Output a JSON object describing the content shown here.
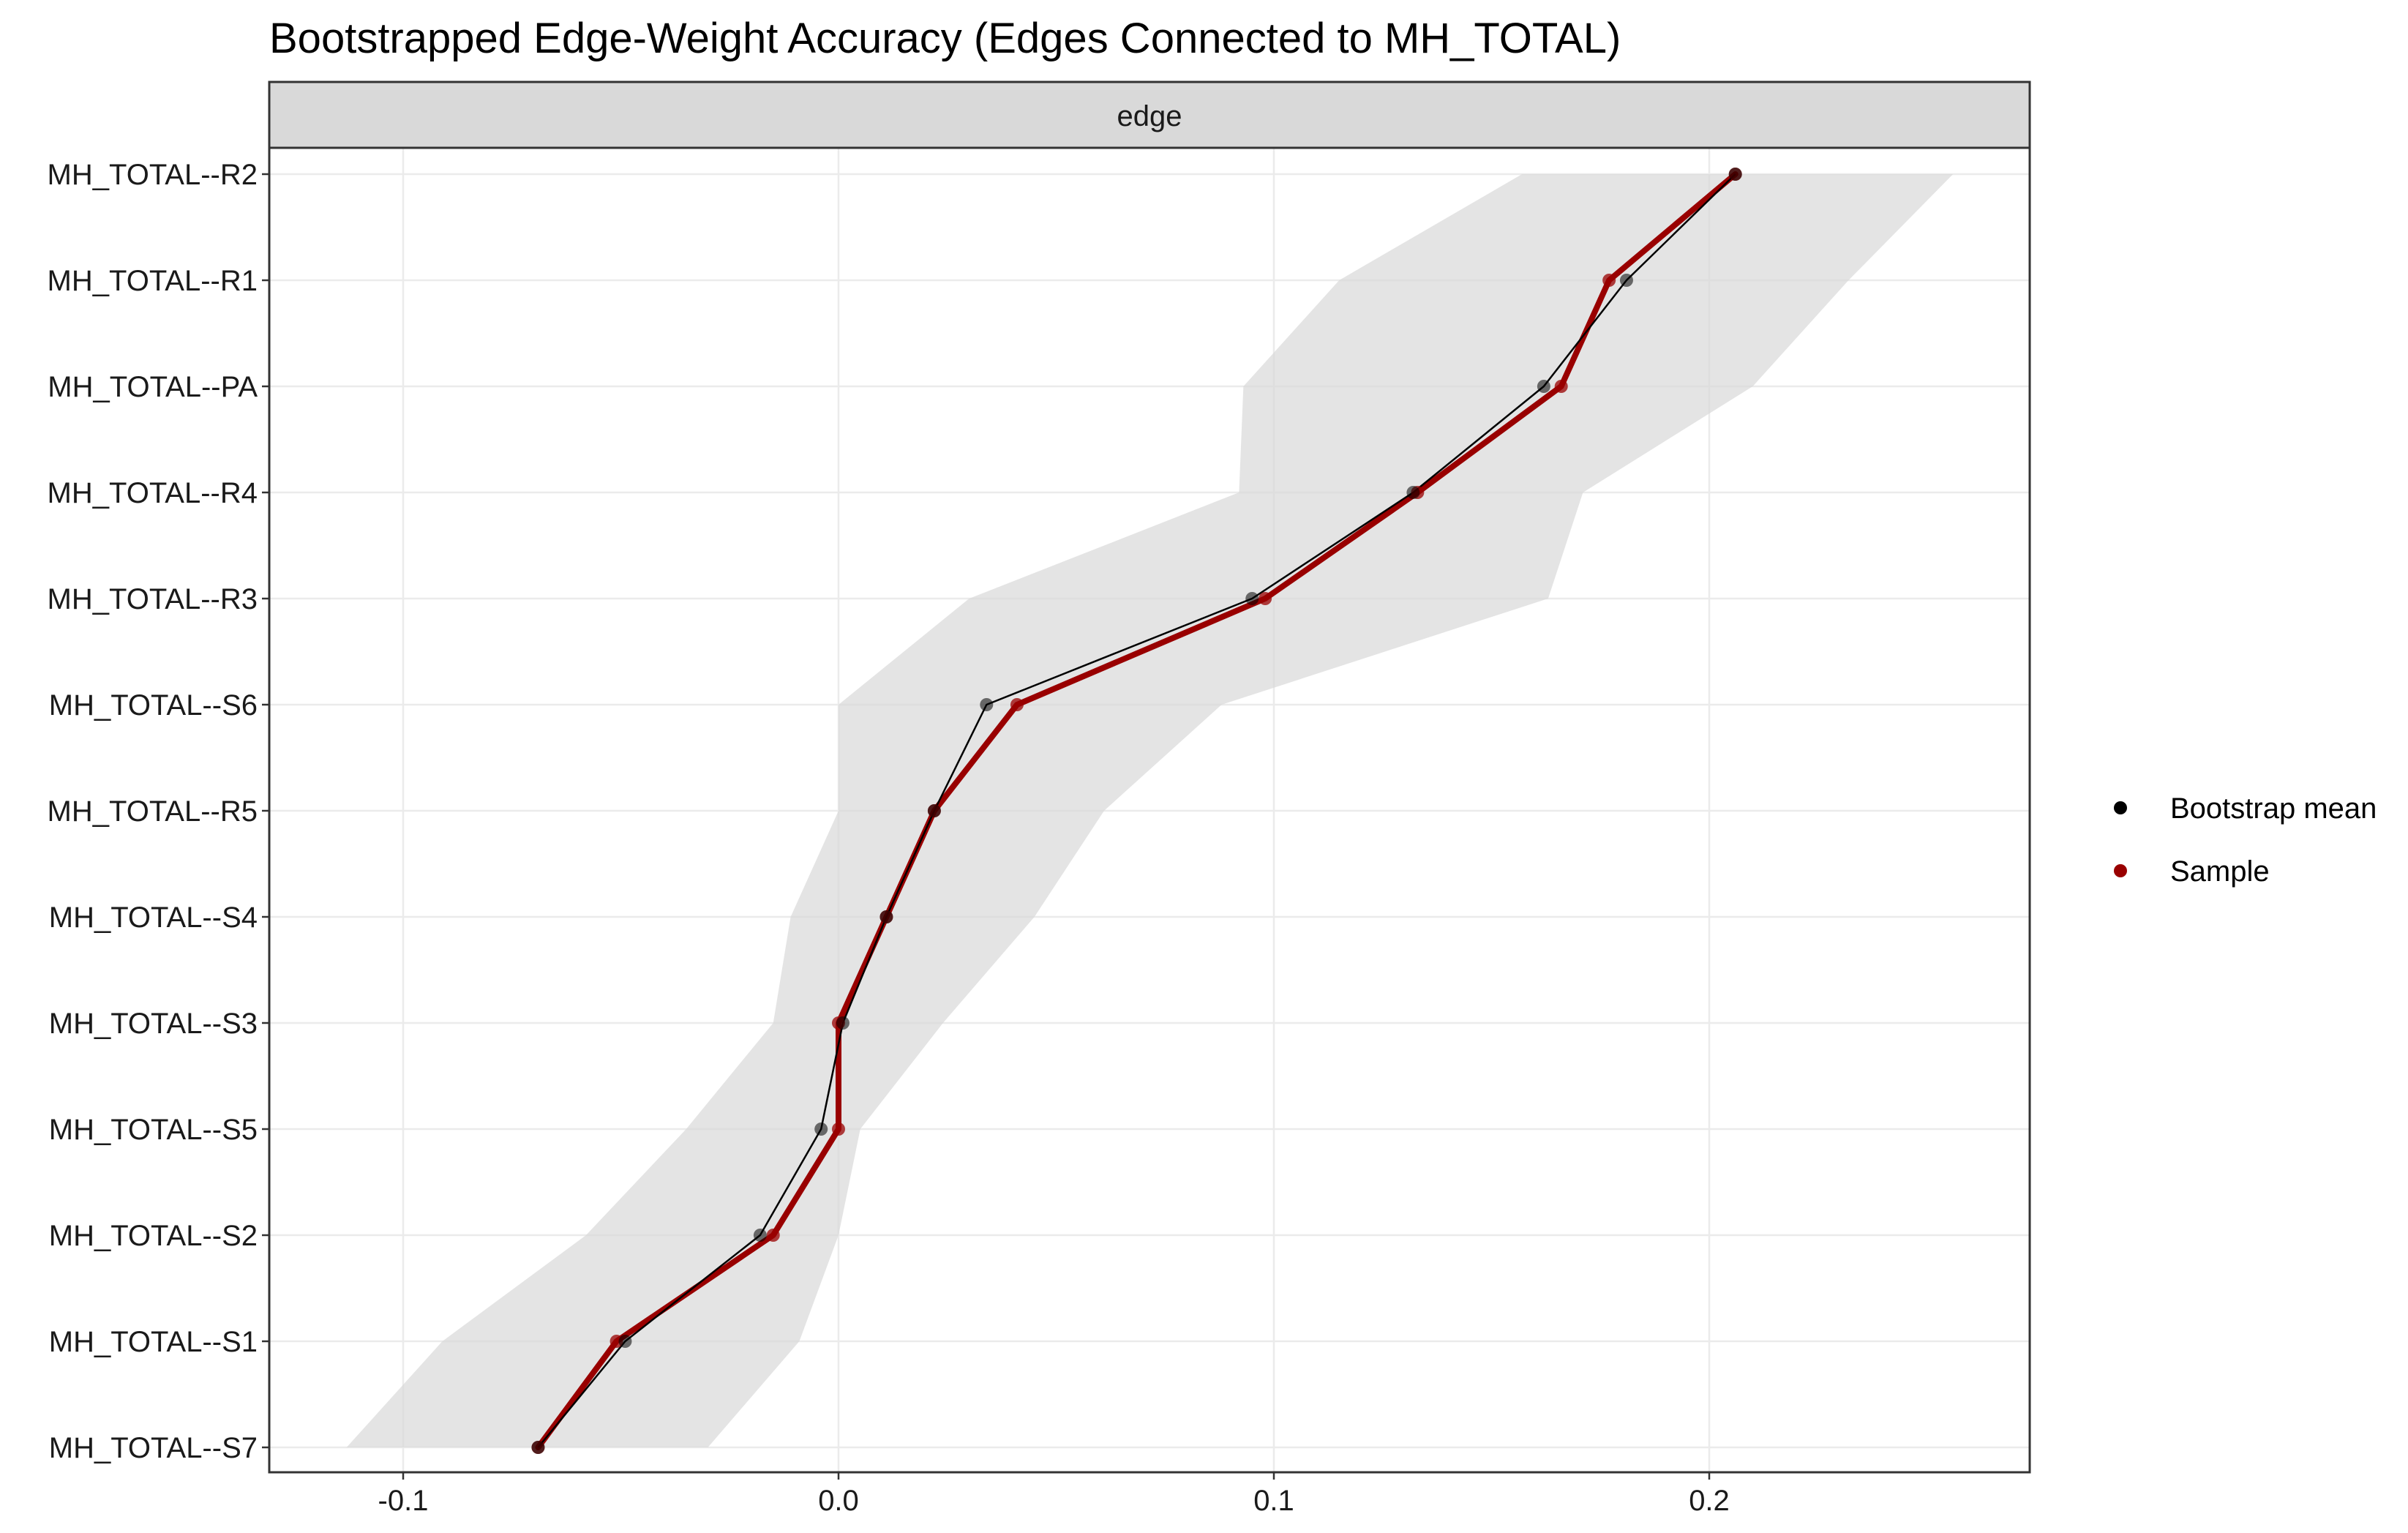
{
  "chart_data": {
    "type": "line",
    "title": "Bootstrapped Edge-Weight Accuracy (Edges Connected to MH_TOTAL)",
    "facet_label": "edge",
    "xlabel": "",
    "ylabel": "",
    "xlim": [
      -0.13,
      0.275
    ],
    "x_ticks": [
      -0.1,
      0.0,
      0.1,
      0.2
    ],
    "x_tick_labels": [
      "-0.1",
      "0.0",
      "0.1",
      "0.2"
    ],
    "grid": true,
    "legend_position": "right",
    "categories": [
      "MH_TOTAL--R2",
      "MH_TOTAL--R1",
      "MH_TOTAL--PA",
      "MH_TOTAL--R4",
      "MH_TOTAL--R3",
      "MH_TOTAL--S6",
      "MH_TOTAL--R5",
      "MH_TOTAL--S4",
      "MH_TOTAL--S3",
      "MH_TOTAL--S5",
      "MH_TOTAL--S2",
      "MH_TOTAL--S1",
      "MH_TOTAL--S7"
    ],
    "ci": {
      "lower": [
        0.157,
        0.115,
        0.093,
        0.092,
        0.03,
        0.0,
        0.0,
        -0.011,
        -0.015,
        -0.035,
        -0.058,
        -0.091,
        -0.113
      ],
      "upper": [
        0.256,
        0.232,
        0.21,
        0.171,
        0.163,
        0.088,
        0.061,
        0.045,
        0.024,
        0.005,
        0.0,
        -0.009,
        -0.03
      ]
    },
    "series": [
      {
        "name": "Bootstrap mean",
        "color": "#000000",
        "values": [
          0.206,
          0.181,
          0.162,
          0.132,
          0.095,
          0.034,
          0.022,
          0.011,
          0.001,
          -0.004,
          -0.018,
          -0.049,
          -0.069
        ]
      },
      {
        "name": "Sample",
        "color": "#990000",
        "values": [
          0.206,
          0.177,
          0.166,
          0.133,
          0.098,
          0.041,
          0.022,
          0.011,
          0.0,
          0.0,
          -0.015,
          -0.051,
          -0.069
        ]
      }
    ],
    "colors": {
      "ci_band": "#d9d9d9",
      "strip_fill": "#d9d9d9",
      "grid": "#ebebeb",
      "panel_border": "#333333"
    }
  }
}
